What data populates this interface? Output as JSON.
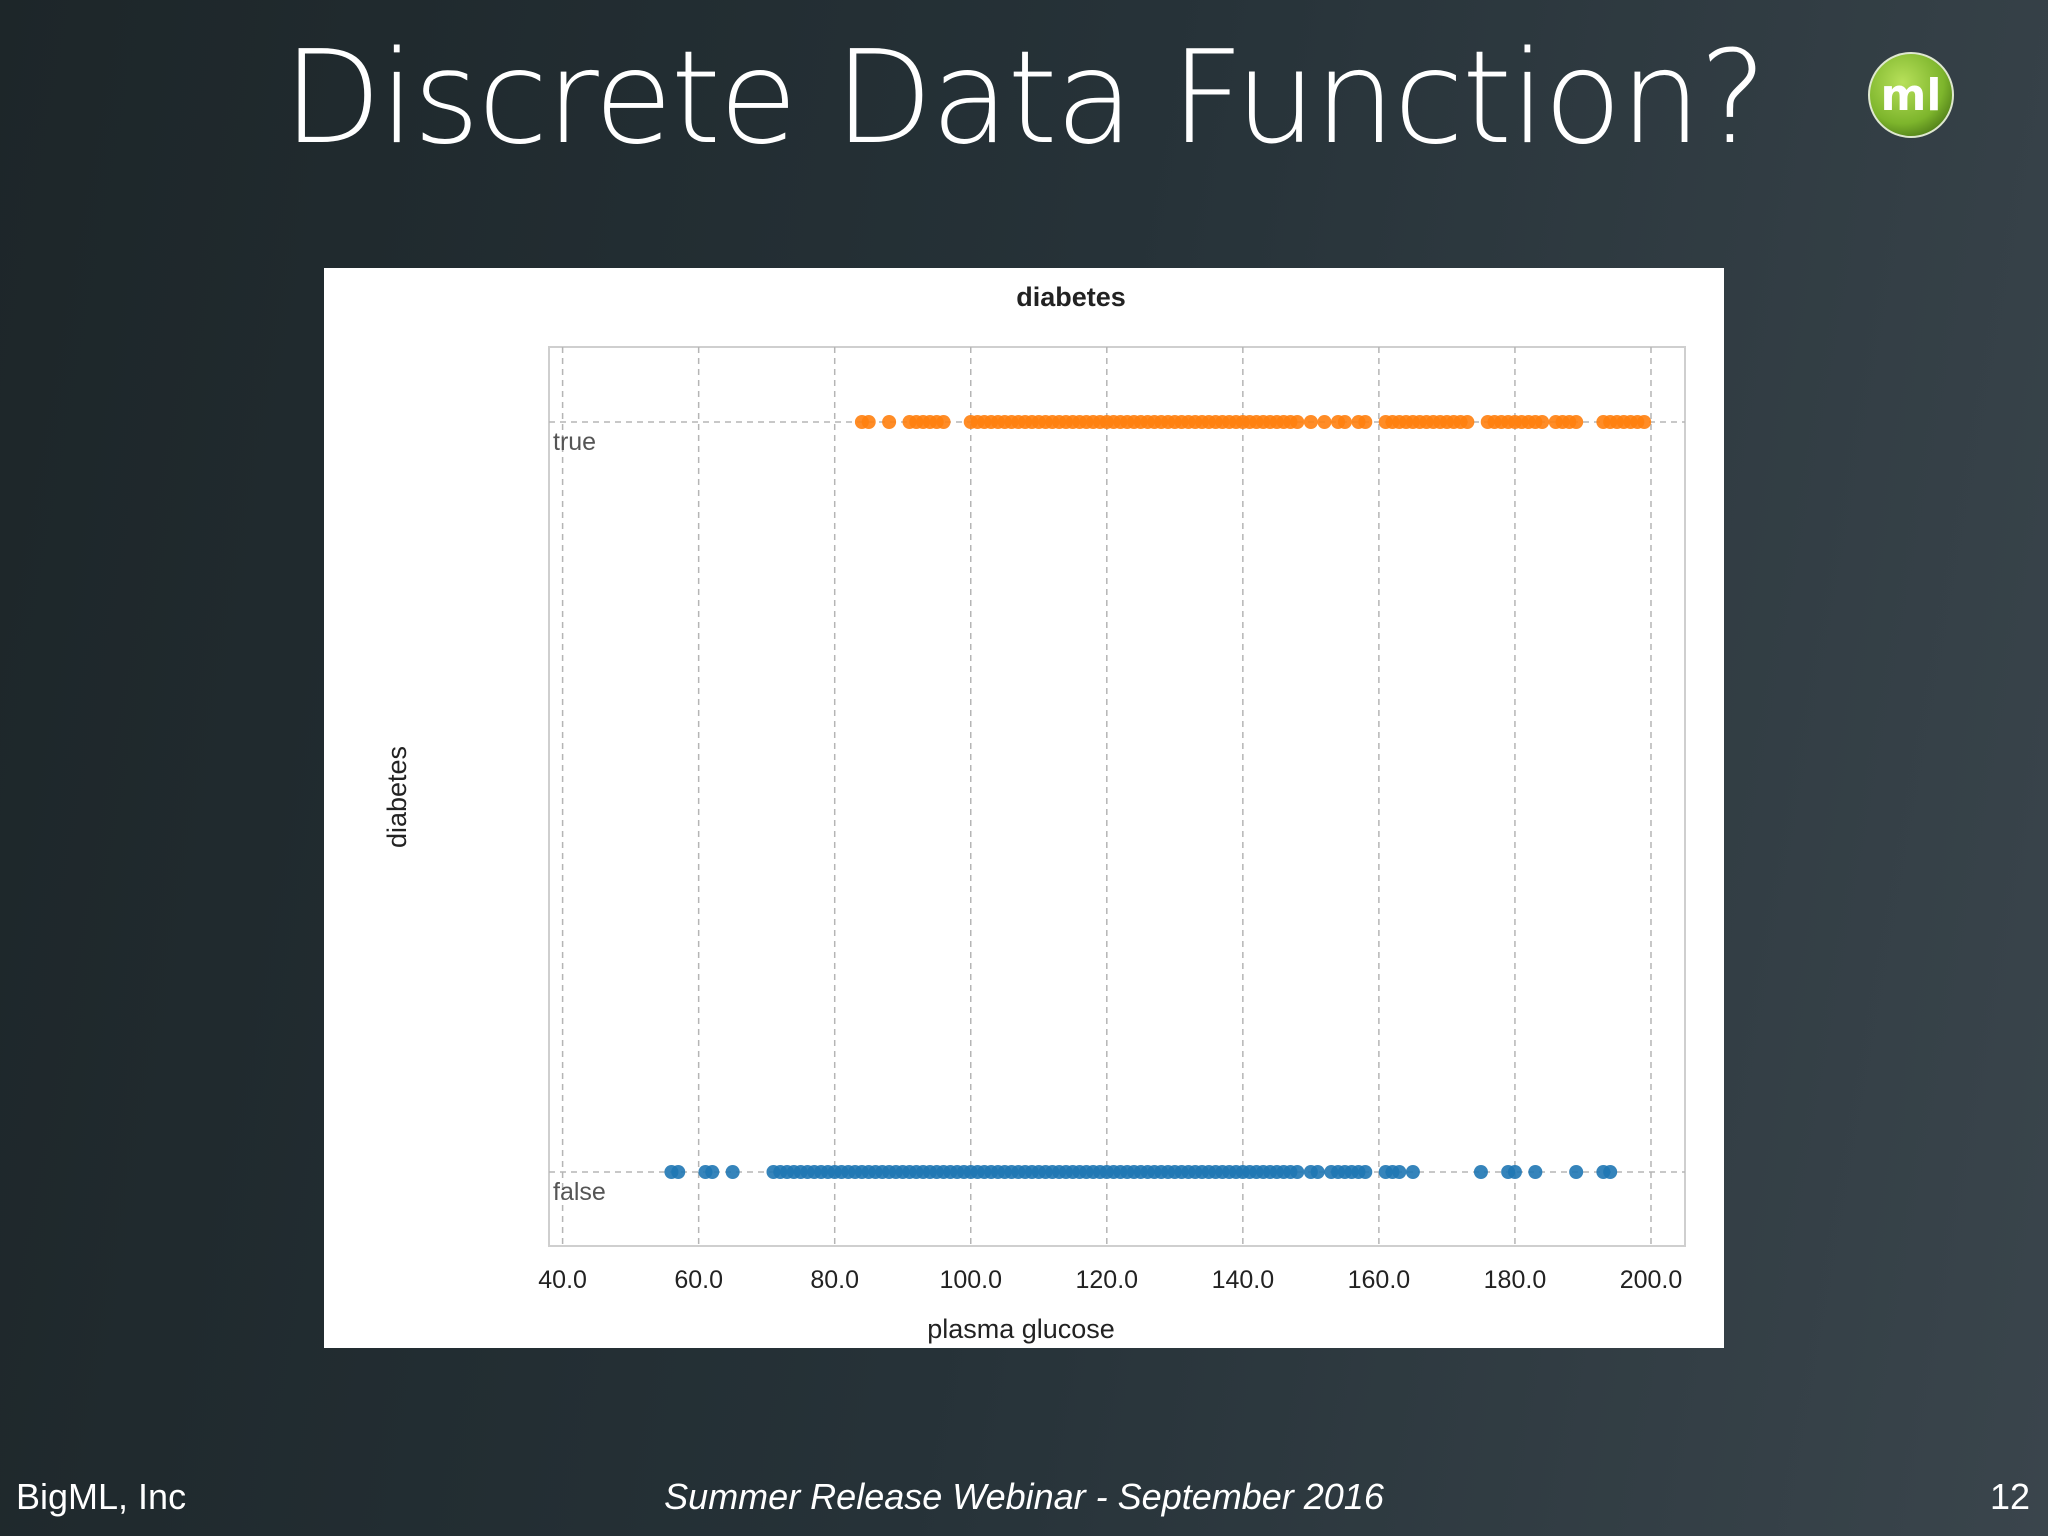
{
  "slide": {
    "title": "Discrete Data Function?",
    "footer_left": "BigML, Inc",
    "footer_center": "Summer Release Webinar - September 2016",
    "page_number": "12",
    "logo_text": "ml"
  },
  "colors": {
    "true_series": "#ff7f0e",
    "false_series": "#1f77b4",
    "grid": "#b5b5b5",
    "logo": "#8cc63f"
  },
  "chart_data": {
    "type": "scatter",
    "title": "diabetes",
    "xlabel": "plasma glucose",
    "ylabel": "diabetes",
    "xlim": [
      38,
      205
    ],
    "x_ticks": [
      "40.0",
      "60.0",
      "80.0",
      "100.0",
      "120.0",
      "140.0",
      "160.0",
      "180.0",
      "200.0"
    ],
    "categories": [
      "true",
      "false"
    ],
    "grid": true,
    "series": [
      {
        "name": "true",
        "points": [
          [
            84,
            1
          ],
          [
            85,
            1
          ],
          [
            88,
            1
          ],
          [
            91,
            1
          ],
          [
            92,
            1
          ],
          [
            93,
            1
          ],
          [
            94,
            1
          ],
          [
            95,
            1
          ],
          [
            96,
            1
          ],
          [
            100,
            1
          ],
          [
            101,
            1
          ],
          [
            102,
            1
          ],
          [
            103,
            1
          ],
          [
            104,
            1
          ],
          [
            105,
            1
          ],
          [
            106,
            1
          ],
          [
            107,
            1
          ],
          [
            108,
            1
          ],
          [
            109,
            1
          ],
          [
            110,
            1
          ],
          [
            111,
            1
          ],
          [
            112,
            1
          ],
          [
            113,
            1
          ],
          [
            114,
            1
          ],
          [
            115,
            1
          ],
          [
            116,
            1
          ],
          [
            117,
            1
          ],
          [
            118,
            1
          ],
          [
            119,
            1
          ],
          [
            120,
            1
          ],
          [
            121,
            1
          ],
          [
            122,
            1
          ],
          [
            123,
            1
          ],
          [
            124,
            1
          ],
          [
            125,
            1
          ],
          [
            126,
            1
          ],
          [
            127,
            1
          ],
          [
            128,
            1
          ],
          [
            129,
            1
          ],
          [
            130,
            1
          ],
          [
            131,
            1
          ],
          [
            132,
            1
          ],
          [
            133,
            1
          ],
          [
            134,
            1
          ],
          [
            135,
            1
          ],
          [
            136,
            1
          ],
          [
            137,
            1
          ],
          [
            138,
            1
          ],
          [
            139,
            1
          ],
          [
            140,
            1
          ],
          [
            141,
            1
          ],
          [
            142,
            1
          ],
          [
            143,
            1
          ],
          [
            144,
            1
          ],
          [
            145,
            1
          ],
          [
            146,
            1
          ],
          [
            147,
            1
          ],
          [
            148,
            1
          ],
          [
            150,
            1
          ],
          [
            152,
            1
          ],
          [
            154,
            1
          ],
          [
            155,
            1
          ],
          [
            157,
            1
          ],
          [
            158,
            1
          ],
          [
            161,
            1
          ],
          [
            162,
            1
          ],
          [
            163,
            1
          ],
          [
            164,
            1
          ],
          [
            165,
            1
          ],
          [
            166,
            1
          ],
          [
            167,
            1
          ],
          [
            168,
            1
          ],
          [
            169,
            1
          ],
          [
            170,
            1
          ],
          [
            171,
            1
          ],
          [
            172,
            1
          ],
          [
            173,
            1
          ],
          [
            176,
            1
          ],
          [
            177,
            1
          ],
          [
            178,
            1
          ],
          [
            179,
            1
          ],
          [
            180,
            1
          ],
          [
            181,
            1
          ],
          [
            182,
            1
          ],
          [
            183,
            1
          ],
          [
            184,
            1
          ],
          [
            186,
            1
          ],
          [
            187,
            1
          ],
          [
            188,
            1
          ],
          [
            189,
            1
          ],
          [
            193,
            1
          ],
          [
            194,
            1
          ],
          [
            195,
            1
          ],
          [
            196,
            1
          ],
          [
            197,
            1
          ],
          [
            198,
            1
          ],
          [
            199,
            1
          ]
        ]
      },
      {
        "name": "false",
        "points": [
          [
            56,
            0
          ],
          [
            57,
            0
          ],
          [
            61,
            0
          ],
          [
            62,
            0
          ],
          [
            65,
            0
          ],
          [
            71,
            0
          ],
          [
            72,
            0
          ],
          [
            73,
            0
          ],
          [
            74,
            0
          ],
          [
            75,
            0
          ],
          [
            76,
            0
          ],
          [
            77,
            0
          ],
          [
            78,
            0
          ],
          [
            79,
            0
          ],
          [
            80,
            0
          ],
          [
            81,
            0
          ],
          [
            82,
            0
          ],
          [
            83,
            0
          ],
          [
            84,
            0
          ],
          [
            85,
            0
          ],
          [
            86,
            0
          ],
          [
            87,
            0
          ],
          [
            88,
            0
          ],
          [
            89,
            0
          ],
          [
            90,
            0
          ],
          [
            91,
            0
          ],
          [
            92,
            0
          ],
          [
            93,
            0
          ],
          [
            94,
            0
          ],
          [
            95,
            0
          ],
          [
            96,
            0
          ],
          [
            97,
            0
          ],
          [
            98,
            0
          ],
          [
            99,
            0
          ],
          [
            100,
            0
          ],
          [
            101,
            0
          ],
          [
            102,
            0
          ],
          [
            103,
            0
          ],
          [
            104,
            0
          ],
          [
            105,
            0
          ],
          [
            106,
            0
          ],
          [
            107,
            0
          ],
          [
            108,
            0
          ],
          [
            109,
            0
          ],
          [
            110,
            0
          ],
          [
            111,
            0
          ],
          [
            112,
            0
          ],
          [
            113,
            0
          ],
          [
            114,
            0
          ],
          [
            115,
            0
          ],
          [
            116,
            0
          ],
          [
            117,
            0
          ],
          [
            118,
            0
          ],
          [
            119,
            0
          ],
          [
            120,
            0
          ],
          [
            121,
            0
          ],
          [
            122,
            0
          ],
          [
            123,
            0
          ],
          [
            124,
            0
          ],
          [
            125,
            0
          ],
          [
            126,
            0
          ],
          [
            127,
            0
          ],
          [
            128,
            0
          ],
          [
            129,
            0
          ],
          [
            130,
            0
          ],
          [
            131,
            0
          ],
          [
            132,
            0
          ],
          [
            133,
            0
          ],
          [
            134,
            0
          ],
          [
            135,
            0
          ],
          [
            136,
            0
          ],
          [
            137,
            0
          ],
          [
            138,
            0
          ],
          [
            139,
            0
          ],
          [
            140,
            0
          ],
          [
            141,
            0
          ],
          [
            142,
            0
          ],
          [
            143,
            0
          ],
          [
            144,
            0
          ],
          [
            145,
            0
          ],
          [
            146,
            0
          ],
          [
            147,
            0
          ],
          [
            148,
            0
          ],
          [
            150,
            0
          ],
          [
            151,
            0
          ],
          [
            153,
            0
          ],
          [
            154,
            0
          ],
          [
            155,
            0
          ],
          [
            156,
            0
          ],
          [
            157,
            0
          ],
          [
            158,
            0
          ],
          [
            161,
            0
          ],
          [
            162,
            0
          ],
          [
            163,
            0
          ],
          [
            165,
            0
          ],
          [
            175,
            0
          ],
          [
            179,
            0
          ],
          [
            180,
            0
          ],
          [
            183,
            0
          ],
          [
            189,
            0
          ],
          [
            193,
            0
          ],
          [
            194,
            0
          ]
        ]
      }
    ]
  }
}
